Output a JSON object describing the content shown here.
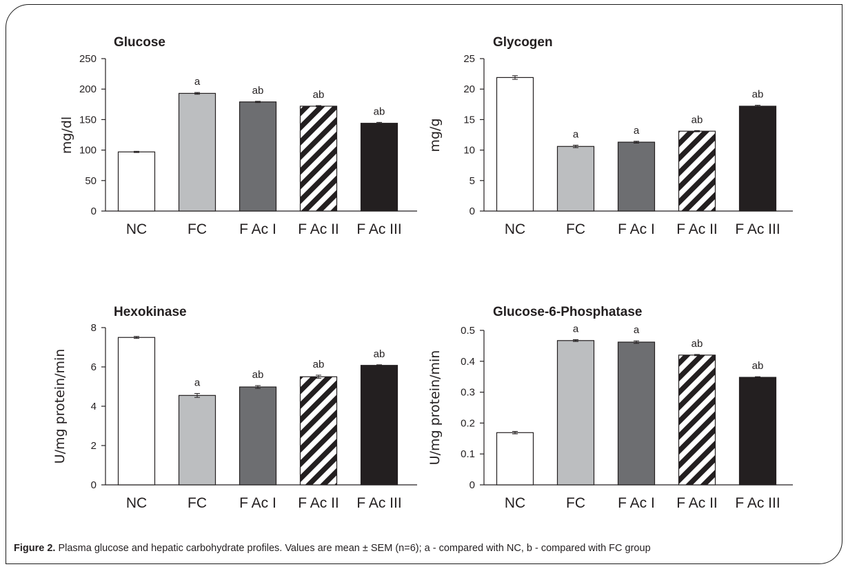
{
  "caption": {
    "label": "Figure 2.",
    "text": "Plasma glucose and hepatic carbohydrate profiles. Values are mean ± SEM (n=6); a - compared with NC, b - compared with FC group"
  },
  "colors": {
    "NC": "#ffffff",
    "FC": "#bcbec0",
    "F Ac I": "#6d6e71",
    "F Ac II": "hatch-black-white",
    "F Ac III": "#231f20"
  },
  "chart_data": [
    {
      "type": "bar",
      "title": "Glucose",
      "ylabel": "mg/dl",
      "ylim": [
        0,
        250
      ],
      "yticks": [
        0,
        50,
        100,
        150,
        200,
        250
      ],
      "categories": [
        "NC",
        "FC",
        "F Ac I",
        "F Ac II",
        "F Ac III"
      ],
      "values": [
        97,
        193,
        179,
        172,
        144
      ],
      "errors": [
        1,
        1.5,
        1,
        1,
        1.5
      ],
      "annotations": [
        "",
        "a",
        "ab",
        "ab",
        "ab"
      ]
    },
    {
      "type": "bar",
      "title": "Glycogen",
      "ylabel": "mg/g",
      "ylim": [
        0,
        25
      ],
      "yticks": [
        0,
        5,
        10,
        15,
        20,
        25
      ],
      "categories": [
        "NC",
        "FC",
        "F Ac I",
        "F Ac II",
        "F Ac III"
      ],
      "values": [
        21.9,
        10.6,
        11.3,
        13.1,
        17.2
      ],
      "errors": [
        0.3,
        0.2,
        0.15,
        0.1,
        0.15
      ],
      "annotations": [
        "",
        "a",
        "a",
        "ab",
        "ab"
      ]
    },
    {
      "type": "bar",
      "title": "Hexokinase",
      "ylabel": "U/mg protein/min",
      "ylim": [
        0,
        8
      ],
      "yticks": [
        0,
        2,
        4,
        6,
        8
      ],
      "categories": [
        "NC",
        "FC",
        "F Ac I",
        "F Ac II",
        "F Ac III"
      ],
      "values": [
        7.5,
        4.55,
        4.98,
        5.5,
        6.08
      ],
      "errors": [
        0.05,
        0.1,
        0.07,
        0.08,
        0.03
      ],
      "annotations": [
        "",
        "a",
        "ab",
        "ab",
        "ab"
      ]
    },
    {
      "type": "bar",
      "title": "Glucose-6-Phosphatase",
      "ylabel": "U/mg protein/min",
      "ylim": [
        0,
        0.5
      ],
      "yticks": [
        0,
        0.1,
        0.2,
        0.3,
        0.4,
        0.5
      ],
      "categories": [
        "NC",
        "FC",
        "F Ac I",
        "F Ac II",
        "F Ac III"
      ],
      "values": [
        0.169,
        0.467,
        0.462,
        0.42,
        0.348
      ],
      "errors": [
        0.004,
        0.003,
        0.004,
        0.002,
        0.002
      ],
      "annotations": [
        "",
        "a",
        "a",
        "ab",
        "ab"
      ]
    }
  ]
}
